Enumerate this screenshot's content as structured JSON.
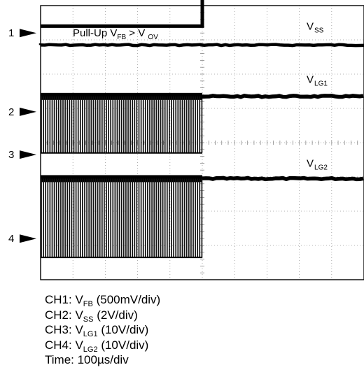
{
  "chart_data": {
    "type": "line",
    "grid": true,
    "x_divisions": 10,
    "y_divisions": 8,
    "trigger_division": 5,
    "annotation": {
      "text_pre": "Pull-Up V",
      "text_sub1": "FB",
      "text_mid": " > V ",
      "text_sub2": "OV"
    },
    "series": [
      {
        "main": "V",
        "sub": "FB",
        "marker": "",
        "style": "step",
        "level_before": 7.4,
        "level_after": 8.45,
        "label_div_y": 8.65
      },
      {
        "main": "V",
        "sub": "SS",
        "marker": "1",
        "style": "flat",
        "level": 6.85,
        "label_div_y": 7.3
      },
      {
        "main": "V",
        "sub": "LG1",
        "marker": "2",
        "marker2": "3",
        "style": "switch",
        "top": 5.35,
        "bottom": 3.7,
        "label_div_y": 5.75
      },
      {
        "main": "V",
        "sub": "LG2",
        "marker": "4",
        "style": "switch",
        "top": 2.95,
        "bottom": 0.65,
        "label_div_y": 3.3
      }
    ],
    "markers": [
      {
        "label": "1",
        "div_y": 7.2
      },
      {
        "label": "2",
        "div_y": 4.9
      },
      {
        "label": "3",
        "div_y": 3.65
      },
      {
        "label": "4",
        "div_y": 1.2
      }
    ]
  },
  "caption": [
    {
      "pre": "CH1: V",
      "sub": "FB",
      "post": " (500mV/div)"
    },
    {
      "pre": "CH2: V",
      "sub": "SS",
      "post": " (2V/div)"
    },
    {
      "pre": "CH3: V",
      "sub": "LG1",
      "post": " (10V/div)"
    },
    {
      "pre": "CH4: V",
      "sub": "LG2",
      "post": " (10V/div)"
    },
    {
      "pre": "Time: 100µs/div",
      "sub": "",
      "post": ""
    }
  ]
}
